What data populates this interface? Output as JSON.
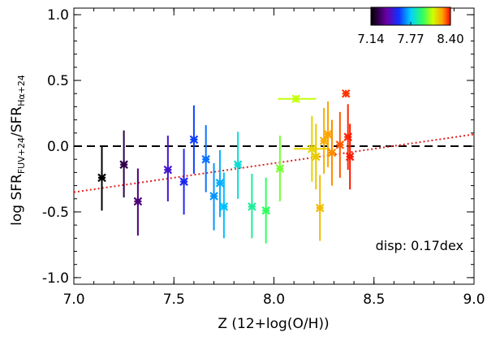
{
  "chart_data": {
    "type": "scatter",
    "xlabel": "Z (12+log(O/H))",
    "ylabel": {
      "prefix": "log SFR",
      "num_sub": "FUV+24",
      "sep": "/SFR",
      "den_sub": "Hα+24"
    },
    "xlim": [
      7.0,
      9.0
    ],
    "ylim": [
      -1.05,
      1.05
    ],
    "xticks": [
      7.0,
      7.5,
      8.0,
      8.5,
      9.0
    ],
    "xticklabels": [
      "7.0",
      "7.5",
      "8.0",
      "8.5",
      "9.0"
    ],
    "yticks": [
      -1.0,
      -0.5,
      0.0,
      0.5,
      1.0
    ],
    "yticklabels": [
      "-1.0",
      "-0.5",
      "0.0",
      "0.5",
      "1.0"
    ],
    "annotation": "disp: 0.17dex",
    "colorbar": {
      "min": 7.14,
      "max": 8.4,
      "tick_values": [
        7.14,
        7.77,
        8.4
      ],
      "ticklabels": [
        "7.14",
        "7.77",
        "8.40"
      ]
    },
    "reference_line": {
      "y": 0.0,
      "style": "dashed",
      "color": "#000000"
    },
    "fit_line": {
      "style": "dotted",
      "color": "#e02020",
      "x": [
        7.0,
        9.0
      ],
      "y": [
        -0.35,
        0.09
      ]
    },
    "points": [
      {
        "x": 7.14,
        "y": -0.24,
        "ylo": -0.49,
        "yhi": 0.0
      },
      {
        "x": 7.25,
        "y": -0.14,
        "ylo": -0.39,
        "yhi": 0.12
      },
      {
        "x": 7.32,
        "y": -0.42,
        "ylo": -0.68,
        "yhi": -0.17
      },
      {
        "x": 7.47,
        "y": -0.18,
        "ylo": -0.42,
        "yhi": 0.08
      },
      {
        "x": 7.55,
        "y": -0.27,
        "ylo": -0.52,
        "yhi": -0.02
      },
      {
        "x": 7.6,
        "y": 0.05,
        "ylo": -0.21,
        "yhi": 0.31
      },
      {
        "x": 7.66,
        "y": -0.1,
        "ylo": -0.35,
        "yhi": 0.16
      },
      {
        "x": 7.7,
        "y": -0.38,
        "ylo": -0.64,
        "yhi": -0.13
      },
      {
        "x": 7.73,
        "y": -0.28,
        "ylo": -0.54,
        "yhi": -0.03
      },
      {
        "x": 7.75,
        "y": -0.46,
        "ylo": -0.7,
        "yhi": -0.2
      },
      {
        "x": 7.82,
        "y": -0.14,
        "ylo": -0.4,
        "yhi": 0.11
      },
      {
        "x": 7.89,
        "y": -0.46,
        "ylo": -0.7,
        "yhi": -0.21
      },
      {
        "x": 7.96,
        "y": -0.49,
        "ylo": -0.74,
        "yhi": -0.24
      },
      {
        "x": 8.03,
        "y": -0.17,
        "ylo": -0.42,
        "yhi": 0.08
      },
      {
        "x": 8.11,
        "y": 0.36,
        "xlo": 8.02,
        "xhi": 8.21
      },
      {
        "x": 8.19,
        "y": -0.02,
        "ylo": -0.27,
        "yhi": 0.23,
        "xlo": 8.1,
        "xhi": 8.28
      },
      {
        "x": 8.21,
        "y": -0.08,
        "ylo": -0.33,
        "yhi": 0.17
      },
      {
        "x": 8.23,
        "y": -0.47,
        "ylo": -0.72,
        "yhi": -0.22
      },
      {
        "x": 8.25,
        "y": 0.04,
        "ylo": -0.21,
        "yhi": 0.29
      },
      {
        "x": 8.27,
        "y": 0.09,
        "ylo": -0.16,
        "yhi": 0.34
      },
      {
        "x": 8.29,
        "y": -0.05,
        "ylo": -0.3,
        "yhi": 0.2
      },
      {
        "x": 8.33,
        "y": 0.01,
        "ylo": -0.24,
        "yhi": 0.26
      },
      {
        "x": 8.36,
        "y": 0.4
      },
      {
        "x": 8.37,
        "y": 0.07,
        "ylo": -0.18,
        "yhi": 0.32
      },
      {
        "x": 8.38,
        "y": -0.08,
        "ylo": -0.33,
        "yhi": 0.17
      }
    ]
  }
}
